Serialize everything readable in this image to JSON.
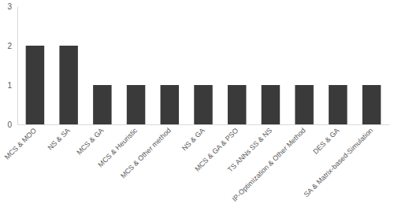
{
  "chart_data": {
    "type": "bar",
    "categories": [
      "MCS & MOO",
      "NS & SA",
      "MCS & GA",
      "MCS & Heuristic",
      "MCS & Other method",
      "NS & GA",
      "MCS & GA & PSO",
      "TS ANNs SS & NS",
      "IP-Optimization & Other Method",
      "DES & GA",
      "SA & Matrix-based-Simulation"
    ],
    "values": [
      2,
      2,
      1,
      1,
      1,
      1,
      1,
      1,
      1,
      1,
      1
    ],
    "color": "#3a3a3a",
    "ylim": [
      0,
      3
    ],
    "yticks": [
      0,
      1,
      2,
      3
    ],
    "grid": false
  }
}
